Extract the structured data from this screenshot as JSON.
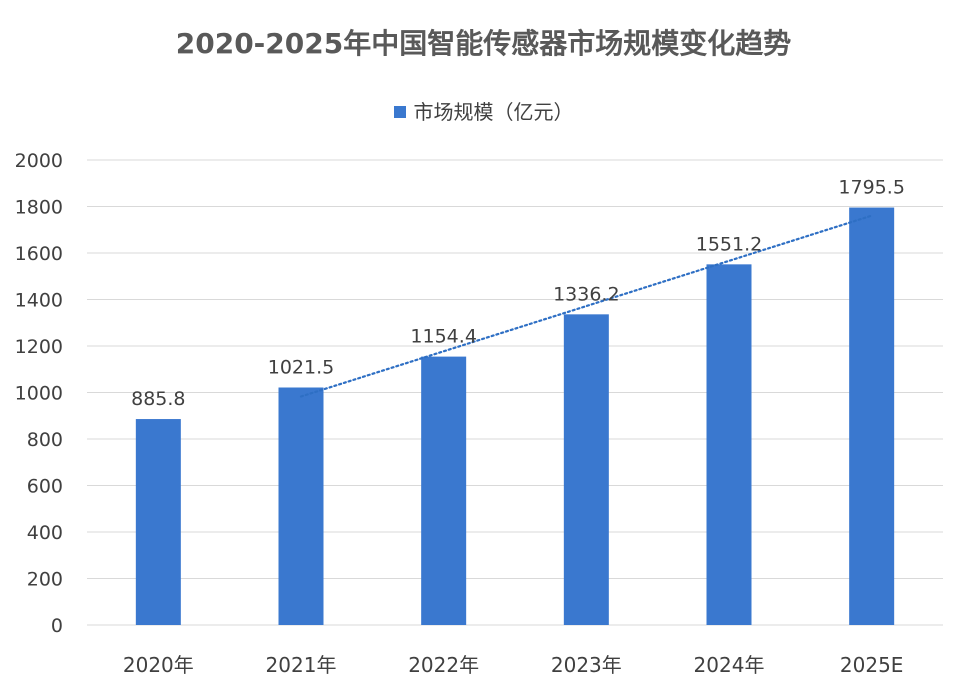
{
  "chart_data": {
    "type": "bar",
    "title": "2020-2025年中国智能传感器市场规模变化趋势",
    "categories": [
      "2020年",
      "2021年",
      "2022年",
      "2023年",
      "2024年",
      "2025E"
    ],
    "series": [
      {
        "name": "市场规模（亿元）",
        "values": [
          885.8,
          1021.5,
          1154.4,
          1336.2,
          1551.2,
          1795.5
        ]
      }
    ],
    "data_labels": [
      "885.8",
      "1021.5",
      "1154.4",
      "1336.2",
      "1551.2",
      "1795.5"
    ],
    "ylim": [
      0,
      2000
    ],
    "yticks": [
      0,
      200,
      400,
      600,
      800,
      1000,
      1200,
      1400,
      1600,
      1800,
      2000
    ],
    "grid": true,
    "legend_position": "top",
    "trendline": {
      "type": "linear",
      "style": "dotted",
      "from_category_index": 1,
      "to_category_index": 5
    },
    "colors": {
      "bar": "#3A78CF",
      "trendline": "#2E6FC4",
      "grid": "#D9D9D9",
      "text": "#404040"
    }
  }
}
